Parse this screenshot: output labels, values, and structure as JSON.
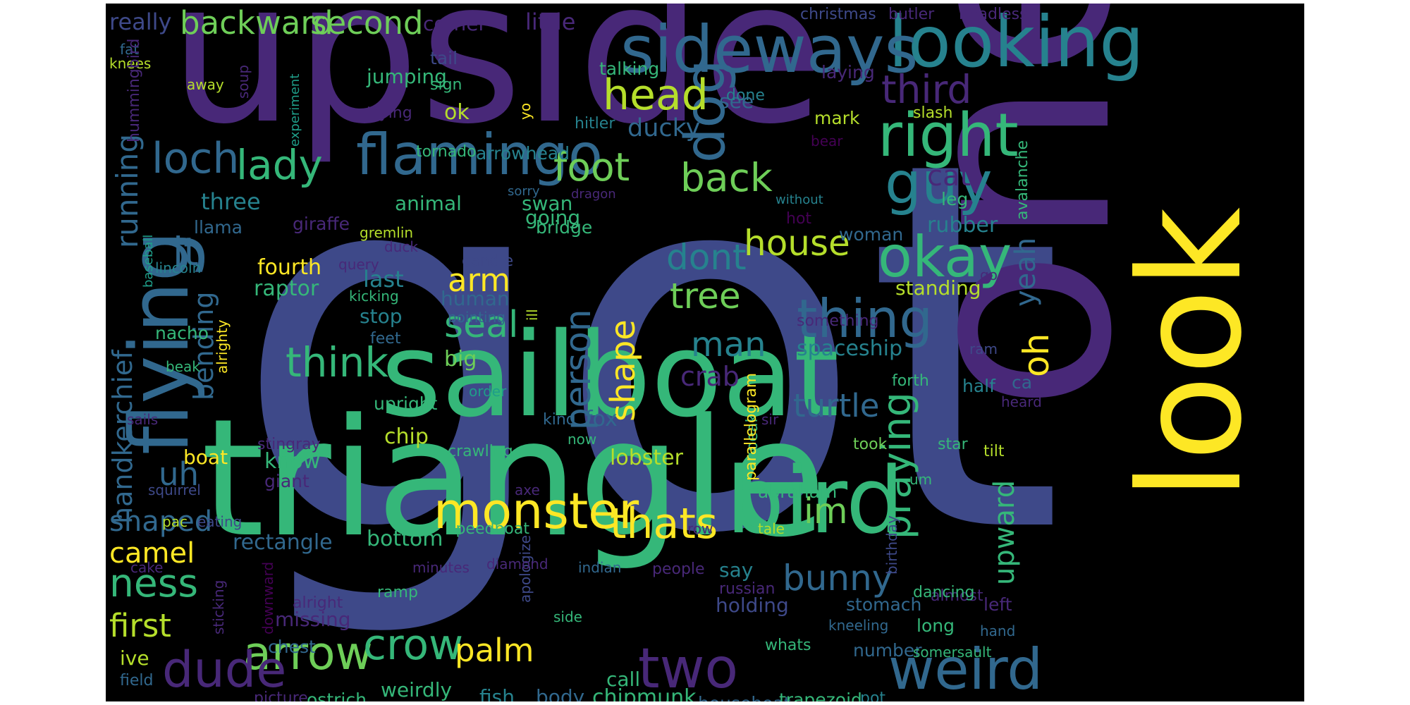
{
  "palette": {
    "yellow": "#fde725",
    "lime": "#b5de2b",
    "green": "#6ece58",
    "emerald": "#35b779",
    "teal": "#1f9e89",
    "cyan": "#26828e",
    "blue": "#31688e",
    "indigo": "#3e4989",
    "violet": "#482878",
    "purple": "#440154"
  },
  "words": [
    {
      "text": "got",
      "color": "indigo"
    },
    {
      "text": "one",
      "color": "violet"
    },
    {
      "text": "upside",
      "color": "violet"
    },
    {
      "text": "triangle",
      "color": "emerald"
    },
    {
      "text": "sailboat",
      "color": "emerald"
    },
    {
      "text": "look",
      "color": "yellow"
    },
    {
      "text": "looking",
      "color": "cyan"
    },
    {
      "text": "sideways",
      "color": "blue"
    },
    {
      "text": "flying",
      "color": "blue"
    },
    {
      "text": "bird",
      "color": "emerald"
    },
    {
      "text": "monster",
      "color": "yellow"
    },
    {
      "text": "flamingo",
      "color": "blue"
    },
    {
      "text": "dog",
      "color": "blue"
    },
    {
      "text": "right",
      "color": "emerald"
    },
    {
      "text": "guy",
      "color": "cyan"
    },
    {
      "text": "okay",
      "color": "emerald"
    },
    {
      "text": "weird",
      "color": "blue"
    },
    {
      "text": "arrow",
      "color": "green"
    },
    {
      "text": "dude",
      "color": "violet"
    },
    {
      "text": "two",
      "color": "violet"
    },
    {
      "text": "thats",
      "color": "yellow"
    },
    {
      "text": "thing",
      "color": "blue"
    },
    {
      "text": "head",
      "color": "lime"
    },
    {
      "text": "crow",
      "color": "emerald"
    },
    {
      "text": "loch",
      "color": "blue"
    },
    {
      "text": "backward",
      "color": "green"
    },
    {
      "text": "second",
      "color": "green"
    },
    {
      "text": "lady",
      "color": "emerald"
    },
    {
      "text": "foot",
      "color": "green"
    },
    {
      "text": "back",
      "color": "green"
    },
    {
      "text": "think",
      "color": "emerald"
    },
    {
      "text": "seal",
      "color": "emerald"
    },
    {
      "text": "person",
      "color": "blue"
    },
    {
      "text": "house",
      "color": "lime"
    },
    {
      "text": "dont",
      "color": "cyan"
    },
    {
      "text": "tree",
      "color": "green"
    },
    {
      "text": "man",
      "color": "cyan"
    },
    {
      "text": "turtle",
      "color": "blue"
    },
    {
      "text": "crab",
      "color": "violet"
    },
    {
      "text": "third",
      "color": "violet"
    },
    {
      "text": "cat",
      "color": "violet"
    },
    {
      "text": "praying",
      "color": "emerald"
    },
    {
      "text": "ness",
      "color": "emerald"
    },
    {
      "text": "first",
      "color": "lime"
    },
    {
      "text": "camel",
      "color": "yellow"
    },
    {
      "text": "shaped",
      "color": "blue"
    },
    {
      "text": "uh",
      "color": "blue"
    },
    {
      "text": "jt",
      "color": "blue"
    },
    {
      "text": "running",
      "color": "blue"
    },
    {
      "text": "handkerchief",
      "color": "blue"
    },
    {
      "text": "bending",
      "color": "blue"
    },
    {
      "text": "im",
      "color": "green"
    },
    {
      "text": "bunny",
      "color": "blue"
    },
    {
      "text": "oh",
      "color": "yellow"
    },
    {
      "text": "yeah",
      "color": "blue"
    },
    {
      "text": "upward",
      "color": "emerald"
    },
    {
      "text": "shape",
      "color": "yellow"
    },
    {
      "text": "arm",
      "color": "yellow"
    },
    {
      "text": "palm",
      "color": "yellow"
    },
    {
      "text": "ducky",
      "color": "blue"
    },
    {
      "text": "really",
      "color": "indigo"
    },
    {
      "text": "corner",
      "color": "violet"
    },
    {
      "text": "little",
      "color": "violet"
    },
    {
      "text": "christmas",
      "color": "indigo"
    },
    {
      "text": "butler",
      "color": "violet"
    },
    {
      "text": "headless",
      "color": "violet"
    },
    {
      "text": "fat",
      "color": "blue"
    },
    {
      "text": "knees",
      "color": "lime"
    },
    {
      "text": "hummingbird",
      "color": "violet"
    },
    {
      "text": "soup",
      "color": "violet"
    },
    {
      "text": "tail",
      "color": "indigo"
    },
    {
      "text": "sign",
      "color": "emerald"
    },
    {
      "text": "away",
      "color": "lime"
    },
    {
      "text": "jumping",
      "color": "emerald"
    },
    {
      "text": "talking",
      "color": "emerald"
    },
    {
      "text": "see",
      "color": "blue"
    },
    {
      "text": "done",
      "color": "cyan"
    },
    {
      "text": "laying",
      "color": "violet"
    },
    {
      "text": "yo",
      "color": "yellow"
    },
    {
      "text": "experiment",
      "color": "teal"
    },
    {
      "text": "trying",
      "color": "violet"
    },
    {
      "text": "ok",
      "color": "lime"
    },
    {
      "text": "mark",
      "color": "lime"
    },
    {
      "text": "slash",
      "color": "lime"
    },
    {
      "text": "avalanche",
      "color": "emerald"
    },
    {
      "text": "bear",
      "color": "purple"
    },
    {
      "text": "hitler",
      "color": "cyan"
    },
    {
      "text": "tornado",
      "color": "emerald"
    },
    {
      "text": "arrowhead",
      "color": "cyan"
    },
    {
      "text": "sorry",
      "color": "blue"
    },
    {
      "text": "dragon",
      "color": "violet"
    },
    {
      "text": "without",
      "color": "cyan"
    },
    {
      "text": "giraffe",
      "color": "violet"
    },
    {
      "text": "animal",
      "color": "emerald"
    },
    {
      "text": "swan",
      "color": "emerald"
    },
    {
      "text": "going",
      "color": "emerald"
    },
    {
      "text": "bridge",
      "color": "emerald"
    },
    {
      "text": "three",
      "color": "cyan"
    },
    {
      "text": "llama",
      "color": "blue"
    },
    {
      "text": "gremlin",
      "color": "lime"
    },
    {
      "text": "duck",
      "color": "violet"
    },
    {
      "text": "baseball",
      "color": "teal"
    },
    {
      "text": "hot",
      "color": "purple"
    },
    {
      "text": "leg",
      "color": "emerald"
    },
    {
      "text": "woman",
      "color": "blue"
    },
    {
      "text": "rubber",
      "color": "cyan"
    },
    {
      "text": "go",
      "color": "violet"
    },
    {
      "text": "standing",
      "color": "lime"
    },
    {
      "text": "lincoln",
      "color": "cyan"
    },
    {
      "text": "query",
      "color": "violet"
    },
    {
      "text": "candle",
      "color": "indigo"
    },
    {
      "text": "fourth",
      "color": "yellow"
    },
    {
      "text": "raptor",
      "color": "emerald"
    },
    {
      "text": "last",
      "color": "cyan"
    },
    {
      "text": "human",
      "color": "blue"
    },
    {
      "text": "kicking",
      "color": "emerald"
    },
    {
      "text": "pointing",
      "color": "blue"
    },
    {
      "text": "ill",
      "color": "lime"
    },
    {
      "text": "nacho",
      "color": "emerald"
    },
    {
      "text": "stop",
      "color": "cyan"
    },
    {
      "text": "something",
      "color": "violet"
    },
    {
      "text": "feet",
      "color": "blue"
    },
    {
      "text": "spaceship",
      "color": "cyan"
    },
    {
      "text": "ram",
      "color": "indigo"
    },
    {
      "text": "beak",
      "color": "emerald"
    },
    {
      "text": "alrighty",
      "color": "yellow"
    },
    {
      "text": "big",
      "color": "green"
    },
    {
      "text": "order",
      "color": "teal"
    },
    {
      "text": "forth",
      "color": "emerald"
    },
    {
      "text": "half",
      "color": "cyan"
    },
    {
      "text": "ca",
      "color": "blue"
    },
    {
      "text": "heard",
      "color": "violet"
    },
    {
      "text": "sails",
      "color": "violet"
    },
    {
      "text": "upright",
      "color": "emerald"
    },
    {
      "text": "kind",
      "color": "blue"
    },
    {
      "text": "fox",
      "color": "blue"
    },
    {
      "text": "speak",
      "color": "emerald"
    },
    {
      "text": "sir",
      "color": "violet"
    },
    {
      "text": "took",
      "color": "green"
    },
    {
      "text": "star",
      "color": "emerald"
    },
    {
      "text": "tilt",
      "color": "lime"
    },
    {
      "text": "chip",
      "color": "lime"
    },
    {
      "text": "stingray",
      "color": "violet"
    },
    {
      "text": "now",
      "color": "emerald"
    },
    {
      "text": "crawling",
      "color": "emerald"
    },
    {
      "text": "lobster",
      "color": "lime"
    },
    {
      "text": "boat",
      "color": "yellow"
    },
    {
      "text": "squirrel",
      "color": "indigo"
    },
    {
      "text": "know",
      "color": "emerald"
    },
    {
      "text": "giant",
      "color": "violet"
    },
    {
      "text": "axe",
      "color": "violet"
    },
    {
      "text": "pac",
      "color": "lime"
    },
    {
      "text": "eating",
      "color": "indigo"
    },
    {
      "text": "abraham",
      "color": "emerald"
    },
    {
      "text": "parallelogram",
      "color": "yellow"
    },
    {
      "text": "birthday",
      "color": "indigo"
    },
    {
      "text": "um",
      "color": "emerald"
    },
    {
      "text": "rectangle",
      "color": "blue"
    },
    {
      "text": "bottom",
      "color": "emerald"
    },
    {
      "text": "speedboat",
      "color": "emerald"
    },
    {
      "text": "row",
      "color": "violet"
    },
    {
      "text": "tale",
      "color": "lime"
    },
    {
      "text": "minutes",
      "color": "violet"
    },
    {
      "text": "apologize",
      "color": "indigo"
    },
    {
      "text": "diamond",
      "color": "violet"
    },
    {
      "text": "indian",
      "color": "blue"
    },
    {
      "text": "people",
      "color": "violet"
    },
    {
      "text": "say",
      "color": "cyan"
    },
    {
      "text": "russian",
      "color": "violet"
    },
    {
      "text": "almost",
      "color": "violet"
    },
    {
      "text": "cake",
      "color": "violet"
    },
    {
      "text": "ramp",
      "color": "emerald"
    },
    {
      "text": "holding",
      "color": "indigo"
    },
    {
      "text": "stomach",
      "color": "blue"
    },
    {
      "text": "dancing",
      "color": "emerald"
    },
    {
      "text": "left",
      "color": "violet"
    },
    {
      "text": "missing",
      "color": "violet"
    },
    {
      "text": "side",
      "color": "emerald"
    },
    {
      "text": "alright",
      "color": "violet"
    },
    {
      "text": "kneeling",
      "color": "blue"
    },
    {
      "text": "hand",
      "color": "blue"
    },
    {
      "text": "chest",
      "color": "blue"
    },
    {
      "text": "sticking",
      "color": "violet"
    },
    {
      "text": "long",
      "color": "emerald"
    },
    {
      "text": "number",
      "color": "blue"
    },
    {
      "text": "whats",
      "color": "emerald"
    },
    {
      "text": "somersault",
      "color": "emerald"
    },
    {
      "text": "ive",
      "color": "lime"
    },
    {
      "text": "downward",
      "color": "purple"
    },
    {
      "text": "field",
      "color": "blue"
    },
    {
      "text": "call",
      "color": "emerald"
    },
    {
      "text": "weirdly",
      "color": "emerald"
    },
    {
      "text": "fish",
      "color": "cyan"
    },
    {
      "text": "body",
      "color": "blue"
    },
    {
      "text": "chipmunk",
      "color": "emerald"
    },
    {
      "text": "picture",
      "color": "violet"
    },
    {
      "text": "ostrich",
      "color": "emerald"
    },
    {
      "text": "houseboat",
      "color": "blue"
    },
    {
      "text": "trapezoid",
      "color": "emerald"
    },
    {
      "text": "pot",
      "color": "cyan"
    }
  ]
}
